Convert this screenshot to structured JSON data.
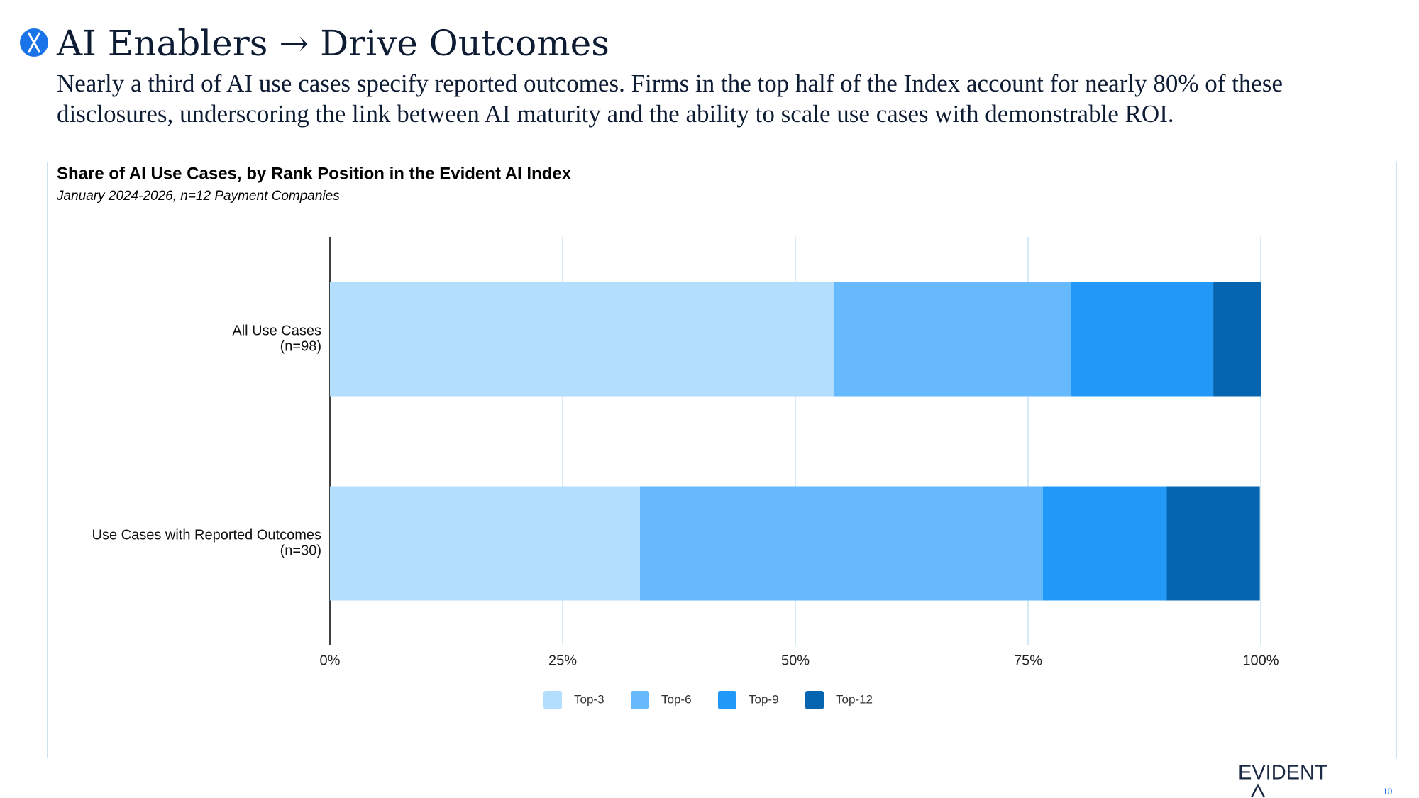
{
  "header": {
    "title": "AI Enablers → Drive Outcomes",
    "subtitle": "Nearly a third of AI use cases specify reported outcomes. Firms in the top half of the Index account for nearly 80% of these disclosures, underscoring the link between AI maturity and the ability to scale use cases with demonstrable ROI."
  },
  "chart_data": {
    "type": "stacked-bar-horizontal",
    "title": "Share of AI Use Cases, by Rank Position in the Evident AI Index",
    "subtitle": "January 2024-2026, n=12 Payment Companies",
    "categories": [
      [
        "All Use Cases",
        "(n=98)"
      ],
      [
        "Use Cases with Reported Outcomes",
        "(n=30)"
      ]
    ],
    "series": [
      {
        "name": "Top-3",
        "color": "#b3defd",
        "values": [
          54.1,
          33.3
        ]
      },
      {
        "name": "Top-6",
        "color": "#66b9fc",
        "values": [
          25.5,
          43.3
        ]
      },
      {
        "name": "Top-9",
        "color": "#2299f8",
        "values": [
          15.3,
          13.3
        ]
      },
      {
        "name": "Top-12",
        "color": "#0565b0",
        "values": [
          5.1,
          10.0
        ]
      }
    ],
    "xlim": [
      0,
      100
    ],
    "xticks": [
      {
        "value": 0,
        "label": "0%"
      },
      {
        "value": 25,
        "label": "25%"
      },
      {
        "value": 50,
        "label": "50%"
      },
      {
        "value": 75,
        "label": "75%"
      },
      {
        "value": 100,
        "label": "100%"
      }
    ],
    "grid": true,
    "legend": "bottom"
  },
  "footer": {
    "logo": "EVIDENT",
    "page_number": "10"
  }
}
